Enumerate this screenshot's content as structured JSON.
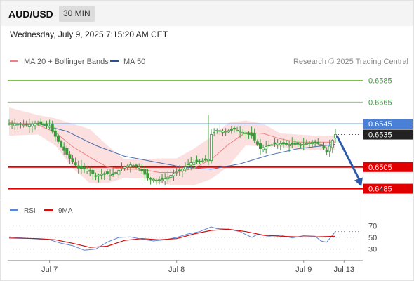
{
  "header": {
    "symbol": "AUD/USD",
    "timeframe": "30 MIN",
    "datetime": "Wednesday, July 9, 2025 7:15:20 AM CET"
  },
  "legend": {
    "ma20": "MA 20 + Bollinger Bands",
    "ma50": "MA 50",
    "credit": "Research © 2025 Trading Central"
  },
  "rsi_legend": {
    "rsi": "RSI",
    "ma9": "9MA"
  },
  "colors": {
    "candle": "#3a9a3a",
    "ma20": "#f08080",
    "band": "#fbd6d6",
    "ma50": "#4a6fb5",
    "support": "#e00000",
    "resistance": "#7cbf4a",
    "current": "#4a7fd6",
    "arrow": "#2a5aa8",
    "rsi": "#5b84d6",
    "rsi_ma": "#d01010"
  },
  "chart_data": [
    {
      "type": "candlestick",
      "title": "AUD/USD 30 MIN",
      "x_tick_labels": [
        "Jul 7",
        "Jul 8",
        "Jul 9",
        "Jul 13"
      ],
      "ylim": [
        0.6475,
        0.6597
      ],
      "levels": [
        {
          "label": "0.6585",
          "value": 0.6585,
          "kind": "resistance"
        },
        {
          "label": "0.6565",
          "value": 0.6565,
          "kind": "resistance"
        },
        {
          "label": "0.6545",
          "value": 0.6545,
          "kind": "current-band"
        },
        {
          "label": "0.6535",
          "value": 0.6535,
          "kind": "last-price"
        },
        {
          "label": "0.6505",
          "value": 0.6505,
          "kind": "support"
        },
        {
          "label": "0.6485",
          "value": 0.6485,
          "kind": "support"
        }
      ],
      "price_path": [
        [
          0,
          0.6545
        ],
        [
          6,
          0.6544
        ],
        [
          10,
          0.6545
        ],
        [
          14,
          0.6543
        ],
        [
          15,
          0.6538
        ],
        [
          18,
          0.6524
        ],
        [
          21,
          0.6513
        ],
        [
          24,
          0.6504
        ],
        [
          27,
          0.6503
        ],
        [
          30,
          0.6497
        ],
        [
          33,
          0.6499
        ],
        [
          36,
          0.6498
        ],
        [
          39,
          0.6504
        ],
        [
          42,
          0.6507
        ],
        [
          45,
          0.6505
        ],
        [
          48,
          0.6495
        ],
        [
          51,
          0.6493
        ],
        [
          54,
          0.6494
        ],
        [
          57,
          0.6499
        ],
        [
          60,
          0.6503
        ],
        [
          63,
          0.6509
        ],
        [
          66,
          0.651
        ],
        [
          69,
          0.6512
        ],
        [
          70,
          0.6535
        ],
        [
          72,
          0.6539
        ],
        [
          75,
          0.6538
        ],
        [
          78,
          0.654
        ],
        [
          81,
          0.6537
        ],
        [
          84,
          0.6534
        ],
        [
          87,
          0.6522
        ],
        [
          90,
          0.6525
        ],
        [
          93,
          0.6527
        ],
        [
          96,
          0.6526
        ],
        [
          99,
          0.6526
        ],
        [
          102,
          0.6526
        ],
        [
          105,
          0.6528
        ],
        [
          108,
          0.6526
        ],
        [
          110,
          0.6519
        ],
        [
          113,
          0.6535
        ]
      ],
      "ma20_path": [
        [
          0,
          0.6546
        ],
        [
          10,
          0.6544
        ],
        [
          16,
          0.6537
        ],
        [
          22,
          0.6524
        ],
        [
          28,
          0.6514
        ],
        [
          34,
          0.6505
        ],
        [
          40,
          0.6503
        ],
        [
          46,
          0.6503
        ],
        [
          52,
          0.65
        ],
        [
          58,
          0.65
        ],
        [
          64,
          0.6504
        ],
        [
          70,
          0.6512
        ],
        [
          76,
          0.6526
        ],
        [
          82,
          0.6537
        ],
        [
          88,
          0.6536
        ],
        [
          94,
          0.6531
        ],
        [
          100,
          0.6528
        ],
        [
          106,
          0.6528
        ],
        [
          113,
          0.6528
        ]
      ],
      "bollinger_upper": [
        [
          0,
          0.656
        ],
        [
          10,
          0.6553
        ],
        [
          16,
          0.655
        ],
        [
          22,
          0.6545
        ],
        [
          28,
          0.654
        ],
        [
          34,
          0.6525
        ],
        [
          40,
          0.6512
        ],
        [
          46,
          0.6512
        ],
        [
          52,
          0.6513
        ],
        [
          58,
          0.6513
        ],
        [
          64,
          0.6522
        ],
        [
          70,
          0.6533
        ],
        [
          76,
          0.6546
        ],
        [
          82,
          0.6548
        ],
        [
          88,
          0.6545
        ],
        [
          94,
          0.6536
        ],
        [
          100,
          0.6535
        ],
        [
          106,
          0.6534
        ],
        [
          113,
          0.6534
        ]
      ],
      "bollinger_lower": [
        [
          0,
          0.6534
        ],
        [
          10,
          0.6535
        ],
        [
          16,
          0.6525
        ],
        [
          22,
          0.6504
        ],
        [
          28,
          0.649
        ],
        [
          34,
          0.649
        ],
        [
          40,
          0.6495
        ],
        [
          46,
          0.6495
        ],
        [
          52,
          0.649
        ],
        [
          58,
          0.6488
        ],
        [
          64,
          0.6488
        ],
        [
          70,
          0.6494
        ],
        [
          76,
          0.6506
        ],
        [
          82,
          0.6525
        ],
        [
          88,
          0.6524
        ],
        [
          94,
          0.6524
        ],
        [
          100,
          0.6521
        ],
        [
          106,
          0.6521
        ],
        [
          113,
          0.6521
        ]
      ],
      "ma50_path": [
        [
          0,
          0.6545
        ],
        [
          10,
          0.6545
        ],
        [
          20,
          0.6538
        ],
        [
          30,
          0.6525
        ],
        [
          40,
          0.6515
        ],
        [
          50,
          0.651
        ],
        [
          60,
          0.6505
        ],
        [
          70,
          0.6503
        ],
        [
          80,
          0.6508
        ],
        [
          90,
          0.6516
        ],
        [
          100,
          0.6522
        ],
        [
          113,
          0.6526
        ]
      ],
      "forecast_arrow": {
        "from": [
          113,
          0.6534
        ],
        "to": [
          122,
          0.6487
        ]
      }
    },
    {
      "type": "line",
      "title": "RSI",
      "ylim": [
        20,
        80
      ],
      "y_ticks": [
        "70",
        "50",
        "30"
      ],
      "series": [
        {
          "name": "RSI",
          "points": [
            [
              0,
              51
            ],
            [
              8,
              48
            ],
            [
              14,
              46
            ],
            [
              18,
              40
            ],
            [
              22,
              36
            ],
            [
              26,
              28
            ],
            [
              30,
              30
            ],
            [
              34,
              42
            ],
            [
              38,
              50
            ],
            [
              42,
              51
            ],
            [
              46,
              47
            ],
            [
              50,
              44
            ],
            [
              54,
              46
            ],
            [
              58,
              50
            ],
            [
              62,
              56
            ],
            [
              66,
              60
            ],
            [
              70,
              68
            ],
            [
              72,
              65
            ],
            [
              76,
              64
            ],
            [
              80,
              60
            ],
            [
              84,
              50
            ],
            [
              86,
              55
            ],
            [
              90,
              52
            ],
            [
              94,
              54
            ],
            [
              98,
              49
            ],
            [
              102,
              53
            ],
            [
              106,
              52
            ],
            [
              108,
              44
            ],
            [
              110,
              42
            ],
            [
              113,
              60
            ]
          ]
        },
        {
          "name": "9MA",
          "points": [
            [
              0,
              49
            ],
            [
              10,
              48
            ],
            [
              16,
              46
            ],
            [
              22,
              40
            ],
            [
              28,
              33
            ],
            [
              34,
              35
            ],
            [
              40,
              45
            ],
            [
              46,
              48
            ],
            [
              52,
              46
            ],
            [
              58,
              48
            ],
            [
              64,
              56
            ],
            [
              70,
              62
            ],
            [
              76,
              64
            ],
            [
              82,
              60
            ],
            [
              88,
              54
            ],
            [
              94,
              52
            ],
            [
              100,
              51
            ],
            [
              106,
              51
            ],
            [
              113,
              52
            ]
          ]
        }
      ]
    }
  ]
}
